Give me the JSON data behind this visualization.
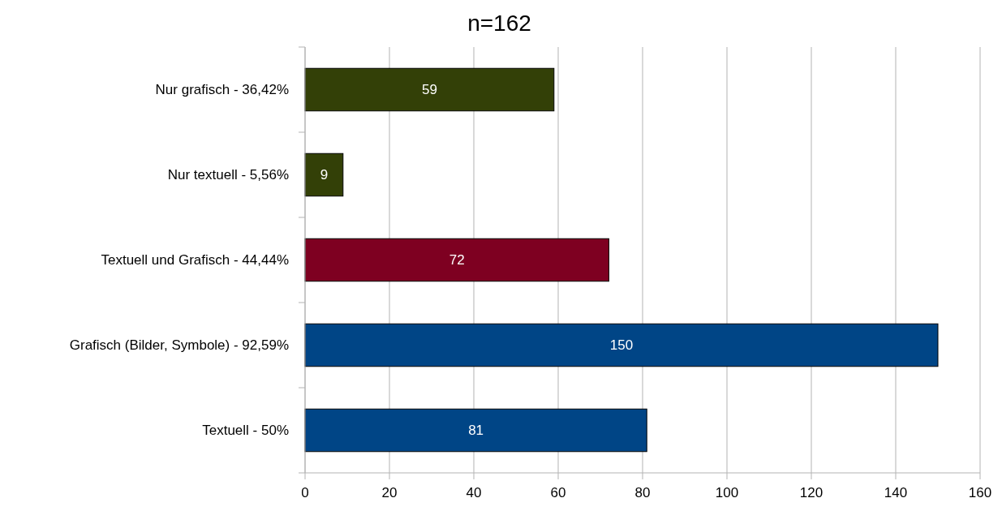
{
  "chart_data": {
    "type": "bar",
    "title": "n=162",
    "orientation": "horizontal",
    "categories": [
      "Nur grafisch - 36,42%",
      "Nur textuell - 5,56%",
      "Textuell und Grafisch - 44,44%",
      "Grafisch (Bilder, Symbole) - 92,59%",
      "Textuell - 50%"
    ],
    "values": [
      59,
      9,
      72,
      150,
      81
    ],
    "colors": [
      "#334007",
      "#334007",
      "#7e0021",
      "#004586",
      "#004586"
    ],
    "xlim": [
      0,
      160
    ],
    "xticks": [
      0,
      20,
      40,
      60,
      80,
      100,
      120,
      140,
      160
    ],
    "grid": "x",
    "data_labels": true
  }
}
